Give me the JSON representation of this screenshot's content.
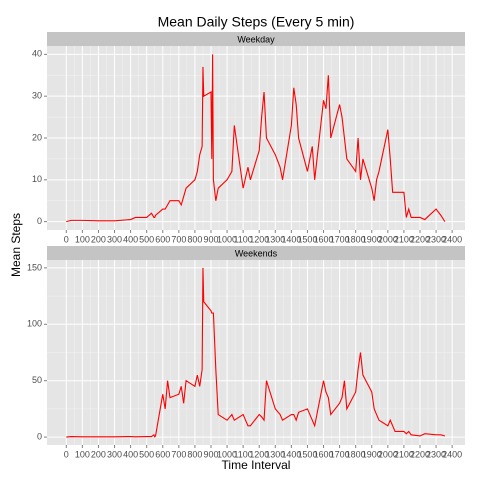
{
  "chart_data": {
    "type": "line",
    "title": "Mean Daily Steps (Every 5 min)",
    "x_label": "Time Interval",
    "y_label": "Mean Steps",
    "color": "#ff0000",
    "xlim": [
      -120,
      2480
    ],
    "xticks": [
      0,
      100,
      200,
      300,
      400,
      500,
      600,
      700,
      800,
      900,
      1000,
      1100,
      1200,
      1300,
      1400,
      1500,
      1600,
      1700,
      1800,
      1900,
      2000,
      2100,
      2200,
      2300,
      2400
    ],
    "x": [
      0,
      30,
      100,
      200,
      300,
      400,
      430,
      500,
      530,
      545,
      550,
      555,
      600,
      615,
      630,
      645,
      700,
      715,
      730,
      745,
      800,
      815,
      830,
      845,
      850,
      855,
      900,
      905,
      910,
      915,
      930,
      945,
      1000,
      1030,
      1045,
      1100,
      1130,
      1145,
      1200,
      1215,
      1230,
      1245,
      1300,
      1330,
      1345,
      1400,
      1415,
      1430,
      1445,
      1500,
      1530,
      1545,
      1600,
      1615,
      1630,
      1645,
      1700,
      1715,
      1730,
      1745,
      1800,
      1815,
      1830,
      1845,
      1900,
      1915,
      1930,
      1945,
      2000,
      2015,
      2030,
      2045,
      2100,
      2115,
      2130,
      2145,
      2200,
      2230,
      2300,
      2330,
      2355
    ],
    "facets": [
      {
        "name": "Weekday",
        "ylim": [
          -2,
          42
        ],
        "yticks": [
          0,
          10,
          20,
          30,
          40
        ],
        "values": [
          0,
          0.3,
          0.3,
          0.2,
          0.2,
          0.5,
          1,
          1,
          2,
          1,
          1,
          1.5,
          3,
          3,
          4,
          5,
          5,
          4,
          6,
          8,
          10,
          12,
          16,
          18,
          37,
          30,
          31,
          15,
          40,
          10,
          5,
          8,
          10,
          12,
          23,
          8,
          13,
          10,
          17,
          25,
          31,
          20,
          16,
          13,
          10,
          23,
          32,
          28,
          20,
          12,
          18,
          10,
          29,
          27,
          35,
          20,
          28,
          25,
          20,
          15,
          12,
          20,
          10,
          15,
          8,
          5,
          10,
          12,
          22,
          15,
          7,
          7,
          7,
          1,
          3,
          1,
          1,
          0.5,
          3,
          1.5,
          0
        ]
      },
      {
        "name": "Weekends",
        "ylim": [
          -7,
          157
        ],
        "yticks": [
          0,
          50,
          100,
          150
        ],
        "values": [
          0,
          0.5,
          0.3,
          0.3,
          0.3,
          0.5,
          0.3,
          0.5,
          0.5,
          2,
          0.3,
          1,
          38,
          25,
          50,
          35,
          38,
          45,
          30,
          50,
          45,
          55,
          45,
          60,
          150,
          120,
          112,
          110,
          110,
          110,
          60,
          20,
          15,
          20,
          15,
          20,
          10,
          10,
          20,
          18,
          15,
          50,
          25,
          20,
          15,
          20,
          20,
          15,
          22,
          25,
          15,
          10,
          50,
          40,
          35,
          20,
          30,
          35,
          50,
          25,
          40,
          60,
          75,
          55,
          40,
          25,
          20,
          15,
          10,
          15,
          10,
          5,
          5,
          3,
          5,
          2,
          1,
          3,
          2,
          2,
          1
        ]
      }
    ]
  }
}
